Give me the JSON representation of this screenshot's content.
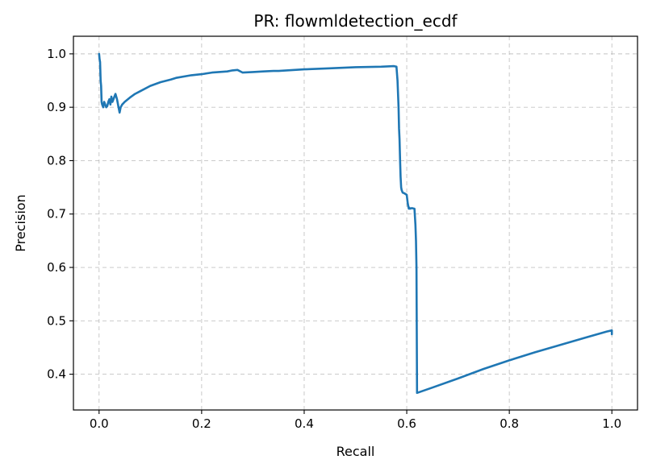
{
  "chart_data": {
    "type": "line",
    "title": "PR: flowmldetection_ecdf",
    "xlabel": "Recall",
    "ylabel": "Precision",
    "xlim": [
      -0.05,
      1.05
    ],
    "ylim": [
      0.333,
      1.033
    ],
    "xticks": [
      0.0,
      0.2,
      0.4,
      0.6,
      0.8,
      1.0
    ],
    "xtick_labels": [
      "0.0",
      "0.2",
      "0.4",
      "0.6",
      "0.8",
      "1.0"
    ],
    "yticks": [
      0.4,
      0.5,
      0.6,
      0.7,
      0.8,
      0.9,
      1.0
    ],
    "ytick_labels": [
      "0.4",
      "0.5",
      "0.6",
      "0.7",
      "0.8",
      "0.9",
      "1.0"
    ],
    "grid": true,
    "legend": "none",
    "series": [
      {
        "color": "#1f77b4",
        "x": [
          0.0,
          0.001,
          0.002,
          0.003,
          0.004,
          0.005,
          0.006,
          0.008,
          0.01,
          0.012,
          0.014,
          0.016,
          0.018,
          0.02,
          0.022,
          0.024,
          0.026,
          0.028,
          0.03,
          0.032,
          0.035,
          0.038,
          0.04,
          0.042,
          0.045,
          0.05,
          0.06,
          0.07,
          0.08,
          0.1,
          0.12,
          0.14,
          0.15,
          0.18,
          0.2,
          0.22,
          0.25,
          0.26,
          0.27,
          0.28,
          0.3,
          0.32,
          0.34,
          0.35,
          0.4,
          0.45,
          0.5,
          0.55,
          0.575,
          0.58,
          0.582,
          0.584,
          0.585,
          0.586,
          0.587,
          0.588,
          0.589,
          0.59,
          0.592,
          0.595,
          0.6,
          0.602,
          0.604,
          0.605,
          0.606,
          0.61,
          0.615,
          0.617,
          0.618,
          0.619,
          0.62,
          0.65,
          0.7,
          0.75,
          0.8,
          0.85,
          0.9,
          0.95,
          0.99,
          1.0,
          1.0
        ],
        "y": [
          1.0,
          0.99,
          0.985,
          0.95,
          0.94,
          0.91,
          0.905,
          0.9,
          0.91,
          0.905,
          0.9,
          0.902,
          0.91,
          0.915,
          0.905,
          0.92,
          0.91,
          0.915,
          0.92,
          0.925,
          0.915,
          0.9,
          0.89,
          0.9,
          0.905,
          0.91,
          0.918,
          0.925,
          0.93,
          0.94,
          0.947,
          0.952,
          0.955,
          0.96,
          0.962,
          0.965,
          0.967,
          0.969,
          0.97,
          0.965,
          0.966,
          0.967,
          0.968,
          0.968,
          0.971,
          0.973,
          0.975,
          0.976,
          0.977,
          0.976,
          0.95,
          0.9,
          0.86,
          0.84,
          0.8,
          0.77,
          0.75,
          0.745,
          0.74,
          0.739,
          0.736,
          0.72,
          0.71,
          0.712,
          0.71,
          0.711,
          0.71,
          0.68,
          0.65,
          0.6,
          0.365,
          0.375,
          0.392,
          0.41,
          0.426,
          0.441,
          0.455,
          0.469,
          0.48,
          0.482,
          0.475
        ]
      }
    ]
  }
}
